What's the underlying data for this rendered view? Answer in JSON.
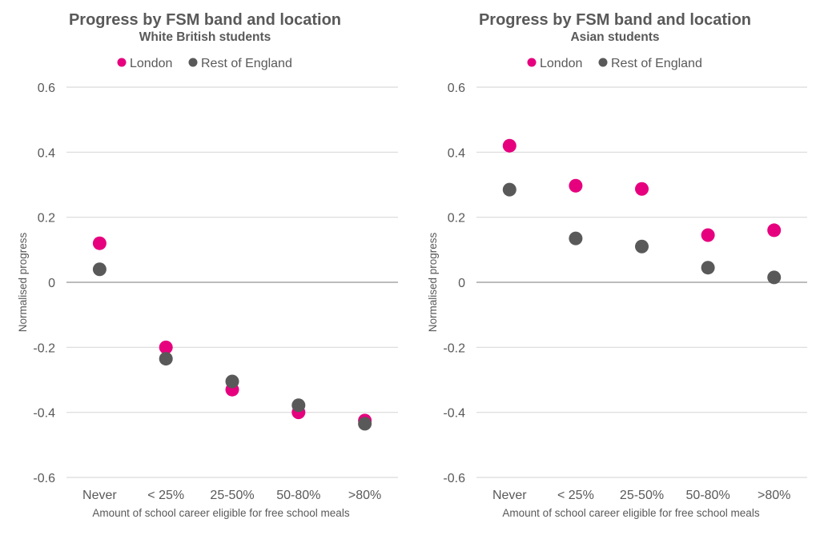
{
  "chart_data": [
    {
      "type": "scatter",
      "title": "Progress by FSM band and location",
      "subtitle": "White British students",
      "xlabel": "Amount of school career eligible for free school meals",
      "ylabel": "Normalised progress",
      "categories": [
        "Never",
        "< 25%",
        "25-50%",
        "50-80%",
        ">80%"
      ],
      "ylim": [
        -0.6,
        0.6
      ],
      "yticks": [
        0.6,
        0.4,
        0.2,
        0,
        -0.2,
        -0.4,
        -0.6
      ],
      "ytick_labels": [
        "0.6",
        "0.4",
        "0.2",
        "0",
        "-0.2",
        "-0.4",
        "-0.6"
      ],
      "grid": true,
      "legend": "top-center",
      "series": [
        {
          "name": "London",
          "color": "#e6007e",
          "values": [
            0.12,
            -0.2,
            -0.33,
            -0.4,
            -0.425
          ]
        },
        {
          "name": "Rest of England",
          "color": "#595959",
          "values": [
            0.04,
            -0.235,
            -0.305,
            -0.378,
            -0.435
          ]
        }
      ]
    },
    {
      "type": "scatter",
      "title": "Progress by FSM band and location",
      "subtitle": "Asian students",
      "xlabel": "Amount of school career eligible for free school meals",
      "ylabel": "Normalised progress",
      "categories": [
        "Never",
        "< 25%",
        "25-50%",
        "50-80%",
        ">80%"
      ],
      "ylim": [
        -0.6,
        0.6
      ],
      "yticks": [
        0.6,
        0.4,
        0.2,
        0,
        -0.2,
        -0.4,
        -0.6
      ],
      "ytick_labels": [
        "0.6",
        "0.4",
        "0.2",
        "0",
        "-0.2",
        "-0.4",
        "-0.6"
      ],
      "grid": true,
      "legend": "top-center",
      "series": [
        {
          "name": "London",
          "color": "#e6007e",
          "values": [
            0.42,
            0.297,
            0.287,
            0.145,
            0.16
          ]
        },
        {
          "name": "Rest of England",
          "color": "#595959",
          "values": [
            0.285,
            0.135,
            0.11,
            0.045,
            0.015
          ]
        }
      ]
    }
  ]
}
